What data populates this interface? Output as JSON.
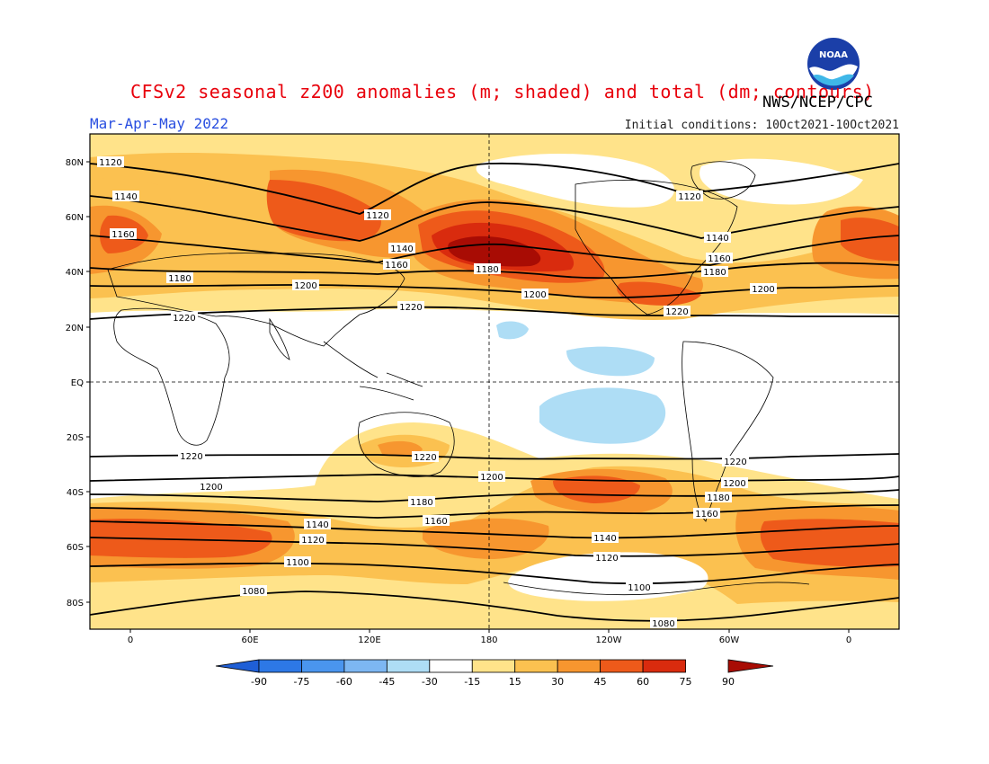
{
  "header": {
    "title": "CFSv2 seasonal z200 anomalies (m; shaded) and total (dm; contours)",
    "agency": "NWS/NCEP/CPC",
    "season": "Mar-Apr-May 2022",
    "initial_conditions": "Initial conditions: 10Oct2021-10Oct2021",
    "logo_text": "NOAA"
  },
  "map": {
    "lat_labels": [
      "80N",
      "60N",
      "40N",
      "20N",
      "EQ",
      "20S",
      "40S",
      "60S",
      "80S"
    ],
    "lon_labels": [
      "0",
      "60E",
      "120E",
      "180",
      "120W",
      "60W",
      "0"
    ],
    "reference_lines": [
      "equator-dashed",
      "dateline-dashed"
    ]
  },
  "colorbar": {
    "labels": [
      "-90",
      "-75",
      "-60",
      "-45",
      "-30",
      "-15",
      "15",
      "30",
      "45",
      "60",
      "75",
      "90"
    ],
    "colors": [
      "#1f5fd6",
      "#2d78e6",
      "#4a95ee",
      "#7db7f2",
      "#aeddf5",
      "#ffffff",
      "#ffe38a",
      "#fbc150",
      "#f7962f",
      "#ee5a1a",
      "#d92b0e",
      "#a80c04"
    ]
  },
  "contours": [
    {
      "label": "1120"
    },
    {
      "label": "1140"
    },
    {
      "label": "1160"
    },
    {
      "label": "1180"
    },
    {
      "label": "1200"
    },
    {
      "label": "1220"
    },
    {
      "label": "1100"
    },
    {
      "label": "1080"
    }
  ]
}
